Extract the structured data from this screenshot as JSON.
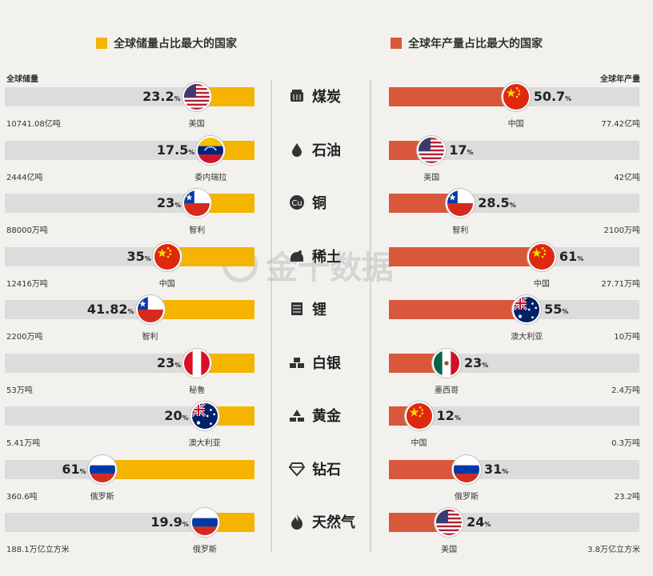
{
  "legend": {
    "left": {
      "label": "全球储量占比最大的国家",
      "color": "#f4b400"
    },
    "right": {
      "label": "全球年产量占比最大的国家",
      "color": "#d9583b"
    }
  },
  "headers": {
    "left": "全球储量",
    "right": "全球年产量"
  },
  "watermark": "金十数据",
  "chart_data": {
    "type": "bar",
    "percent_unit": "%",
    "categories": [
      "煤炭",
      "石油",
      "铜",
      "稀土",
      "锂",
      "白银",
      "黄金",
      "钻石",
      "天然气"
    ],
    "series": [
      {
        "name": "全球储量占比最大的国家",
        "values": [
          23.2,
          17.5,
          23,
          35,
          41.82,
          23,
          20,
          61,
          19.9
        ],
        "value_labels": [
          "23.2",
          "17.5",
          "23",
          "35",
          "41.82",
          "23",
          "20",
          "61",
          "19.9"
        ],
        "countries": [
          "美国",
          "委内瑞拉",
          "智利",
          "中国",
          "智利",
          "秘鲁",
          "澳大利亚",
          "俄罗斯",
          "俄罗斯"
        ],
        "flags": [
          "us",
          "venezuela",
          "chile",
          "china",
          "chile",
          "peru",
          "australia",
          "russia",
          "russia"
        ],
        "totals": [
          "10741.08亿吨",
          "2444亿吨",
          "88000万吨",
          "12416万吨",
          "2200万吨",
          "53万吨",
          "5.41万吨",
          "360.6吨",
          "188.1万亿立方米"
        ]
      },
      {
        "name": "全球年产量占比最大的国家",
        "values": [
          50.7,
          17,
          28.5,
          61,
          55,
          23,
          12,
          31,
          24
        ],
        "value_labels": [
          "50.7",
          "17",
          "28.5",
          "61",
          "55",
          "23",
          "12",
          "31",
          "24"
        ],
        "countries": [
          "中国",
          "美国",
          "智利",
          "中国",
          "澳大利亚",
          "墨西哥",
          "中国",
          "俄罗斯",
          "美国"
        ],
        "flags": [
          "china",
          "us",
          "chile",
          "china",
          "australia",
          "mexico",
          "china",
          "russia",
          "us"
        ],
        "totals": [
          "77.42亿吨",
          "42亿吨",
          "2100万吨",
          "27.71万吨",
          "10万吨",
          "2.4万吨",
          "0.3万吨",
          "23.2吨",
          "3.8万亿立方米"
        ]
      }
    ],
    "resource_icons": [
      "coal-icon",
      "oil-drop-icon",
      "copper-icon",
      "rare-earth-icon",
      "lithium-icon",
      "silver-icon",
      "gold-icon",
      "diamond-icon",
      "natural-gas-icon"
    ],
    "xlim": [
      0,
      100
    ],
    "colors": {
      "reserve": "#f4b400",
      "production": "#d9583b",
      "track": "#dcdcdc"
    }
  }
}
